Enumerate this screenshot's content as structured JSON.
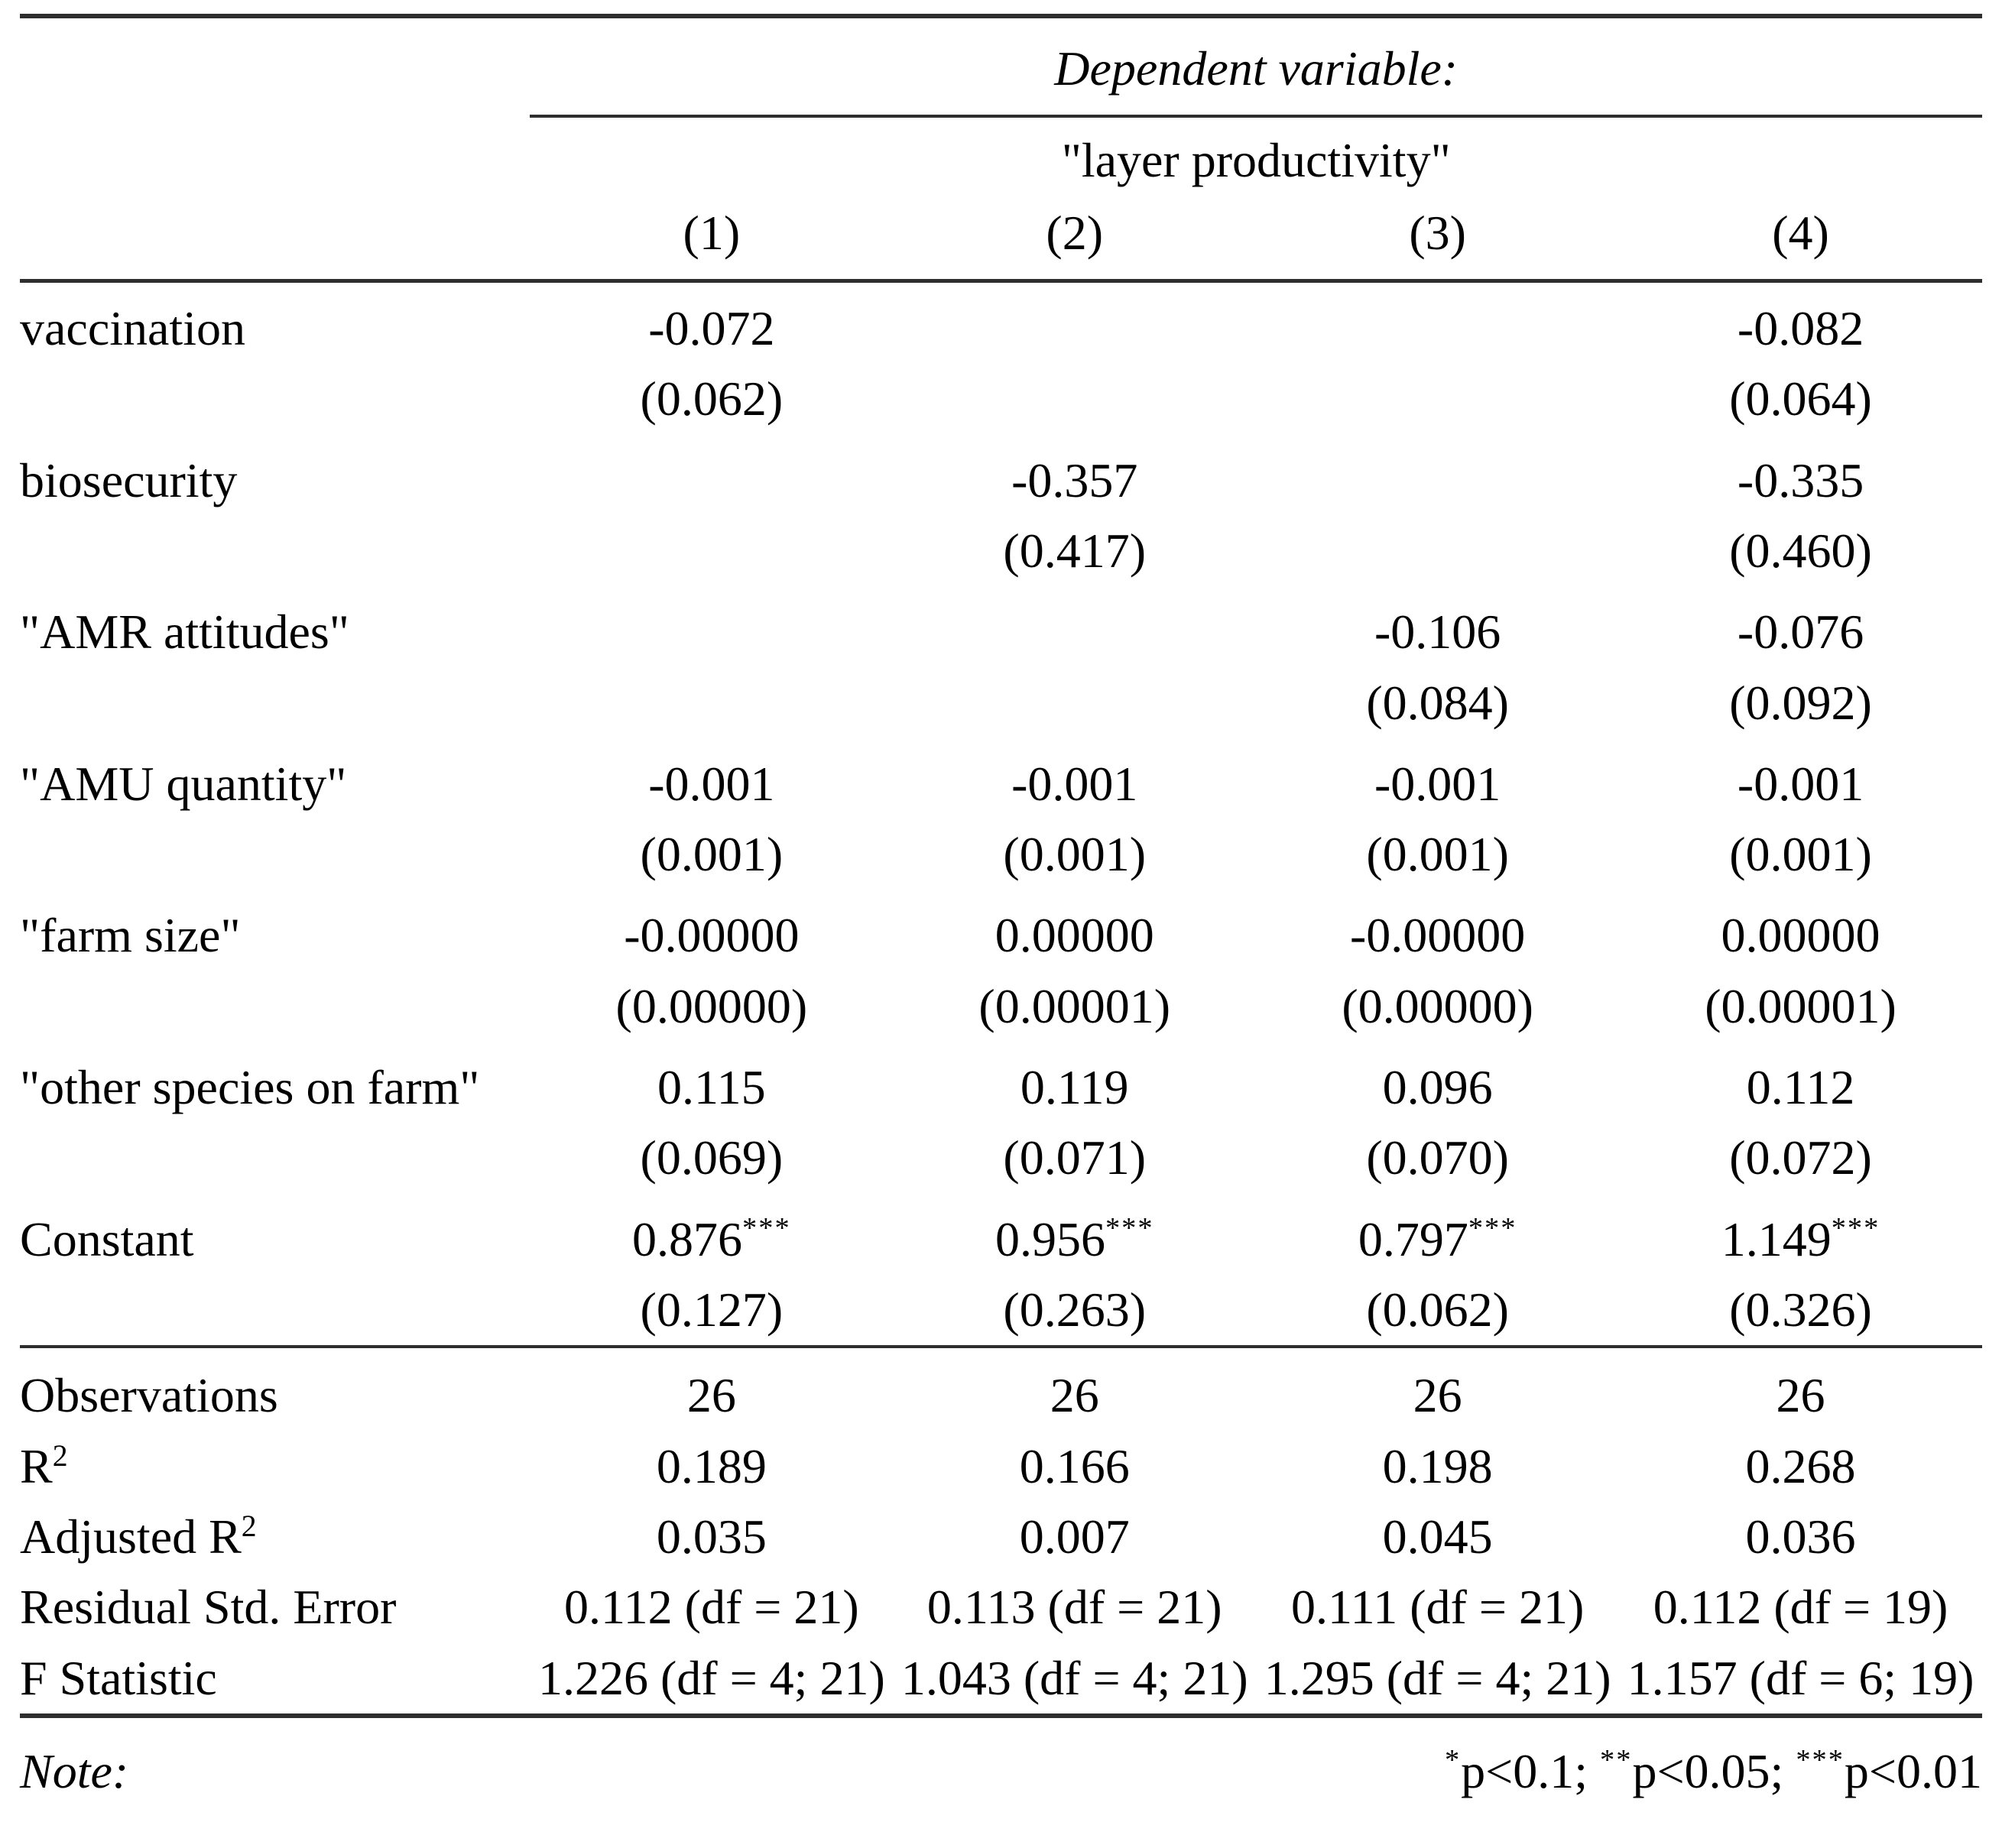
{
  "colors": {
    "text": "#000000",
    "rule": "#2e2e2e"
  },
  "table": {
    "dependent_variable_label": "Dependent variable:",
    "dependent_variable_name": "\"layer productivity\"",
    "column_numbers": [
      "(1)",
      "(2)",
      "(3)",
      "(4)"
    ],
    "rows": [
      {
        "label": "vaccination",
        "coef": [
          "-0.072",
          "",
          "",
          "-0.082"
        ],
        "se": [
          "(0.062)",
          "",
          "",
          "(0.064)"
        ]
      },
      {
        "label": "biosecurity",
        "coef": [
          "",
          "-0.357",
          "",
          "-0.335"
        ],
        "se": [
          "",
          "(0.417)",
          "",
          "(0.460)"
        ]
      },
      {
        "label": "\"AMR attitudes\"",
        "coef": [
          "",
          "",
          "-0.106",
          "-0.076"
        ],
        "se": [
          "",
          "",
          "(0.084)",
          "(0.092)"
        ]
      },
      {
        "label": "\"AMU quantity\"",
        "coef": [
          "-0.001",
          "-0.001",
          "-0.001",
          "-0.001"
        ],
        "se": [
          "(0.001)",
          "(0.001)",
          "(0.001)",
          "(0.001)"
        ]
      },
      {
        "label": "\"farm size\"",
        "coef": [
          "-0.00000",
          "0.00000",
          "-0.00000",
          "0.00000"
        ],
        "se": [
          "(0.00000)",
          "(0.00001)",
          "(0.00000)",
          "(0.00001)"
        ]
      },
      {
        "label": "\"other species on farm\"",
        "coef": [
          "0.115",
          "0.119",
          "0.096",
          "0.112"
        ],
        "se": [
          "(0.069)",
          "(0.071)",
          "(0.070)",
          "(0.072)"
        ]
      },
      {
        "label": "Constant",
        "coef": [
          "0.876",
          "0.956",
          "0.797",
          "1.149"
        ],
        "stars": [
          "***",
          "***",
          "***",
          "***"
        ],
        "se": [
          "(0.127)",
          "(0.263)",
          "(0.062)",
          "(0.326)"
        ]
      }
    ],
    "summary": [
      {
        "label": "Observations",
        "values": [
          "26",
          "26",
          "26",
          "26"
        ]
      },
      {
        "label": "R",
        "label_sup": "2",
        "values": [
          "0.189",
          "0.166",
          "0.198",
          "0.268"
        ]
      },
      {
        "label": "Adjusted R",
        "label_sup": "2",
        "values": [
          "0.035",
          "0.007",
          "0.045",
          "0.036"
        ]
      },
      {
        "label": "Residual Std. Error",
        "values": [
          "0.112 (df = 21)",
          "0.113 (df = 21)",
          "0.111 (df = 21)",
          "0.112 (df = 19)"
        ]
      },
      {
        "label": "F Statistic",
        "values": [
          "1.226 (df = 4; 21)",
          "1.043 (df = 4; 21)",
          "1.295 (df = 4; 21)",
          "1.157 (df = 6; 19)"
        ]
      }
    ],
    "note": {
      "label": "Note:",
      "legend": [
        {
          "stars": "*",
          "text": "p<0.1; "
        },
        {
          "stars": "**",
          "text": "p<0.05; "
        },
        {
          "stars": "***",
          "text": "p<0.01"
        }
      ]
    }
  }
}
